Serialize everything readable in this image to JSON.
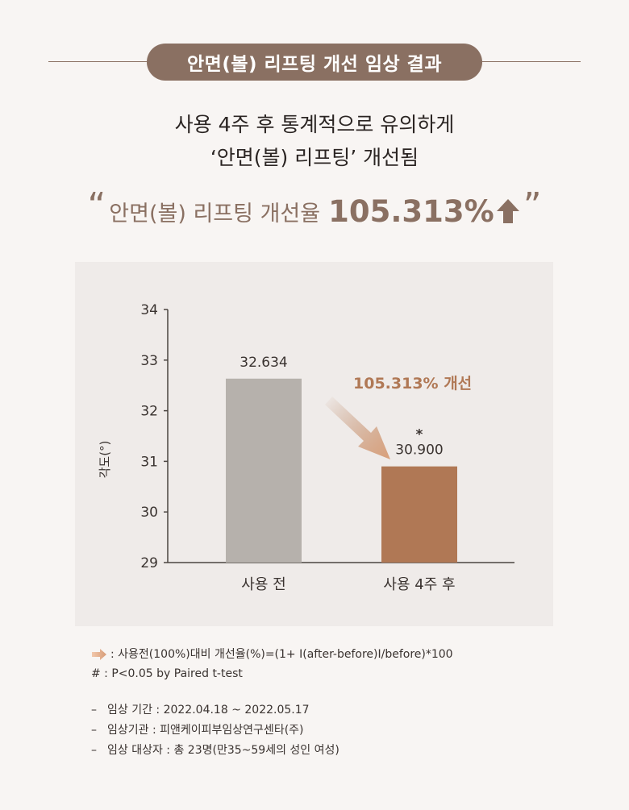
{
  "header": {
    "title": "안면(볼) 리프팅 개선 임상 결과"
  },
  "subtitle": {
    "line1": "사용 4주 후 통계적으로 유의하게",
    "line2": "‘안면(볼) 리프팅’ 개선됨"
  },
  "highlight": {
    "open_quote": "“",
    "label": "안면(볼) 리프팅 개선율",
    "value": "105.313%",
    "close_quote": "”",
    "icon": "up-arrow-icon"
  },
  "colors": {
    "accent": "#8a7062",
    "bar_before": "#b6b1ac",
    "bar_after": "#b07855",
    "panel": "#efebe9"
  },
  "chart_data": {
    "type": "bar",
    "ylabel": "각도(°)",
    "ylim": [
      29,
      34
    ],
    "yticks": [
      29,
      30,
      31,
      32,
      33,
      34
    ],
    "categories": [
      "사용 전",
      "사용 4주 후"
    ],
    "values": [
      32.634,
      30.9
    ],
    "value_labels": [
      "32.634",
      "30.900"
    ],
    "significance_marker": "*",
    "annotation": "105.313% 개선",
    "grid": false
  },
  "notes": {
    "arrow_icon": "right-arrow-icon",
    "formula": ": 사용전(100%)대비 개선율(%)=(1+ I(after-before)I/before)*100",
    "significance": "# : P<0.05 by Paired t-test"
  },
  "info": {
    "dash": "–",
    "items": [
      "임상 기간 : 2022.04.18 ~ 2022.05.17",
      "임상기관 : 피앤케이피부임상연구센타(주)",
      "임상 대상자 : 총 23명(만35~59세의 성인 여성)"
    ]
  }
}
